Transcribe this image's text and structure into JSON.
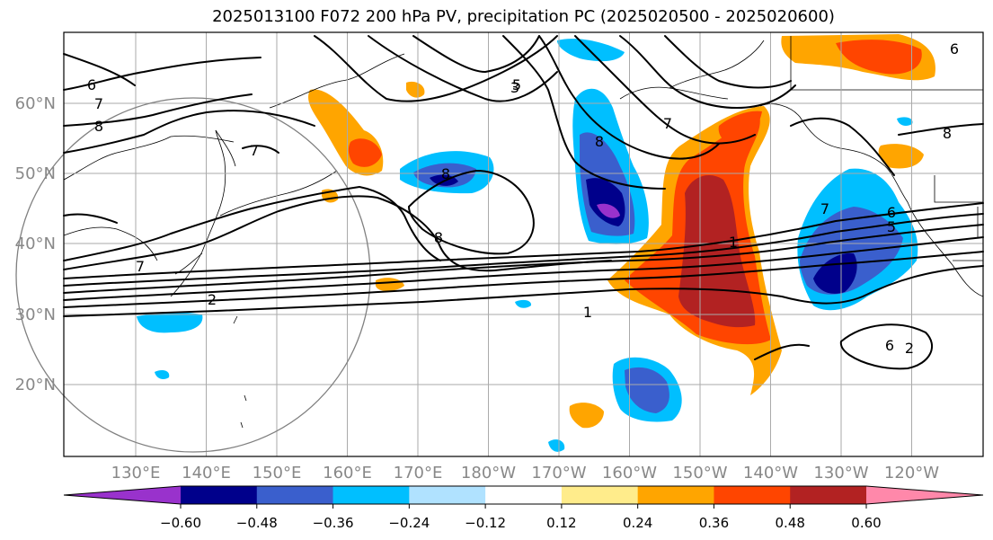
{
  "title": "2025013100 F072 200 hPa PV, precipitation PC (2025020500 - 2025020600)",
  "chart_data": {
    "type": "heatmap",
    "title": "2025013100 F072 200 hPa PV, precipitation PC (2025020500 - 2025020600)",
    "lon_ticks": [
      "130°E",
      "140°E",
      "150°E",
      "160°E",
      "170°E",
      "180°W",
      "170°W",
      "160°W",
      "150°W",
      "140°W",
      "130°W",
      "120°W"
    ],
    "lat_ticks": [
      "60°N",
      "50°N",
      "40°N",
      "30°N",
      "20°N"
    ],
    "colorbar": {
      "ticks": [
        "−0.60",
        "−0.48",
        "−0.36",
        "−0.24",
        "−0.12",
        "0.12",
        "0.24",
        "0.36",
        "0.48",
        "0.60"
      ],
      "colors": [
        "#9932cc",
        "#00008b",
        "#3a5fcd",
        "#00bfff",
        "#b0e2ff",
        "#ffffff",
        "#ffec8b",
        "#ffa500",
        "#ff4500",
        "#b22222",
        "#ff88aa"
      ],
      "extend": "both"
    },
    "contour_labels": [
      "6",
      "7",
      "8",
      "3",
      "5",
      "7",
      "8",
      "8",
      "6",
      "7",
      "8",
      "7",
      "2",
      "1",
      "1",
      "2",
      "6",
      "6",
      "5",
      "7",
      "8"
    ],
    "grid": true
  }
}
